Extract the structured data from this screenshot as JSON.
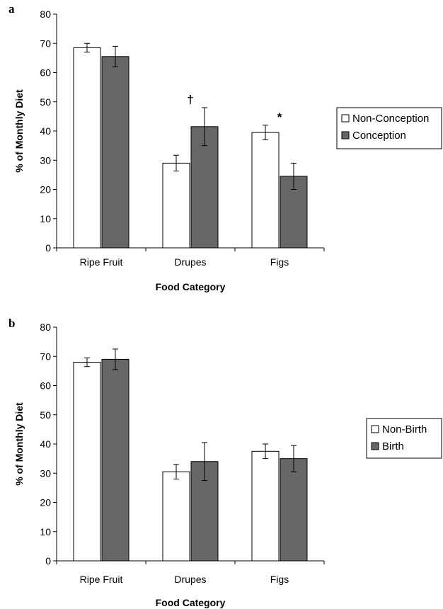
{
  "chart_data": [
    {
      "type": "bar",
      "panel": "a",
      "categories": [
        "Ripe Fruit",
        "Drupes",
        "Figs"
      ],
      "xlabel": "Food Category",
      "ylabel": "% of Monthly Diet",
      "ylim": [
        0,
        80
      ],
      "yticks": [
        0,
        10,
        20,
        30,
        40,
        50,
        60,
        70,
        80
      ],
      "grid": false,
      "legend_position": "right",
      "series": [
        {
          "name": "Non-Conception",
          "color": "#ffffff",
          "values": [
            68.5,
            29,
            39.5
          ],
          "errors": [
            1.5,
            2.7,
            2.5
          ]
        },
        {
          "name": "Conception",
          "color": "#666666",
          "values": [
            65.5,
            41.5,
            24.5
          ],
          "errors": [
            3.5,
            6.5,
            4.5
          ]
        }
      ],
      "annotations": [
        {
          "category": "Drupes",
          "text": "†"
        },
        {
          "category": "Figs",
          "text": "*"
        }
      ]
    },
    {
      "type": "bar",
      "panel": "b",
      "categories": [
        "Ripe Fruit",
        "Drupes",
        "Figs"
      ],
      "xlabel": "Food Category",
      "ylabel": "% of Monthly Diet",
      "ylim": [
        0,
        80
      ],
      "yticks": [
        0,
        10,
        20,
        30,
        40,
        50,
        60,
        70,
        80
      ],
      "grid": false,
      "legend_position": "right",
      "series": [
        {
          "name": "Non-Birth",
          "color": "#ffffff",
          "values": [
            68,
            30.5,
            37.5
          ],
          "errors": [
            1.5,
            2.5,
            2.5
          ]
        },
        {
          "name": "Birth",
          "color": "#666666",
          "values": [
            69,
            34,
            35
          ],
          "errors": [
            3.5,
            6.5,
            4.5
          ]
        }
      ],
      "annotations": []
    }
  ]
}
